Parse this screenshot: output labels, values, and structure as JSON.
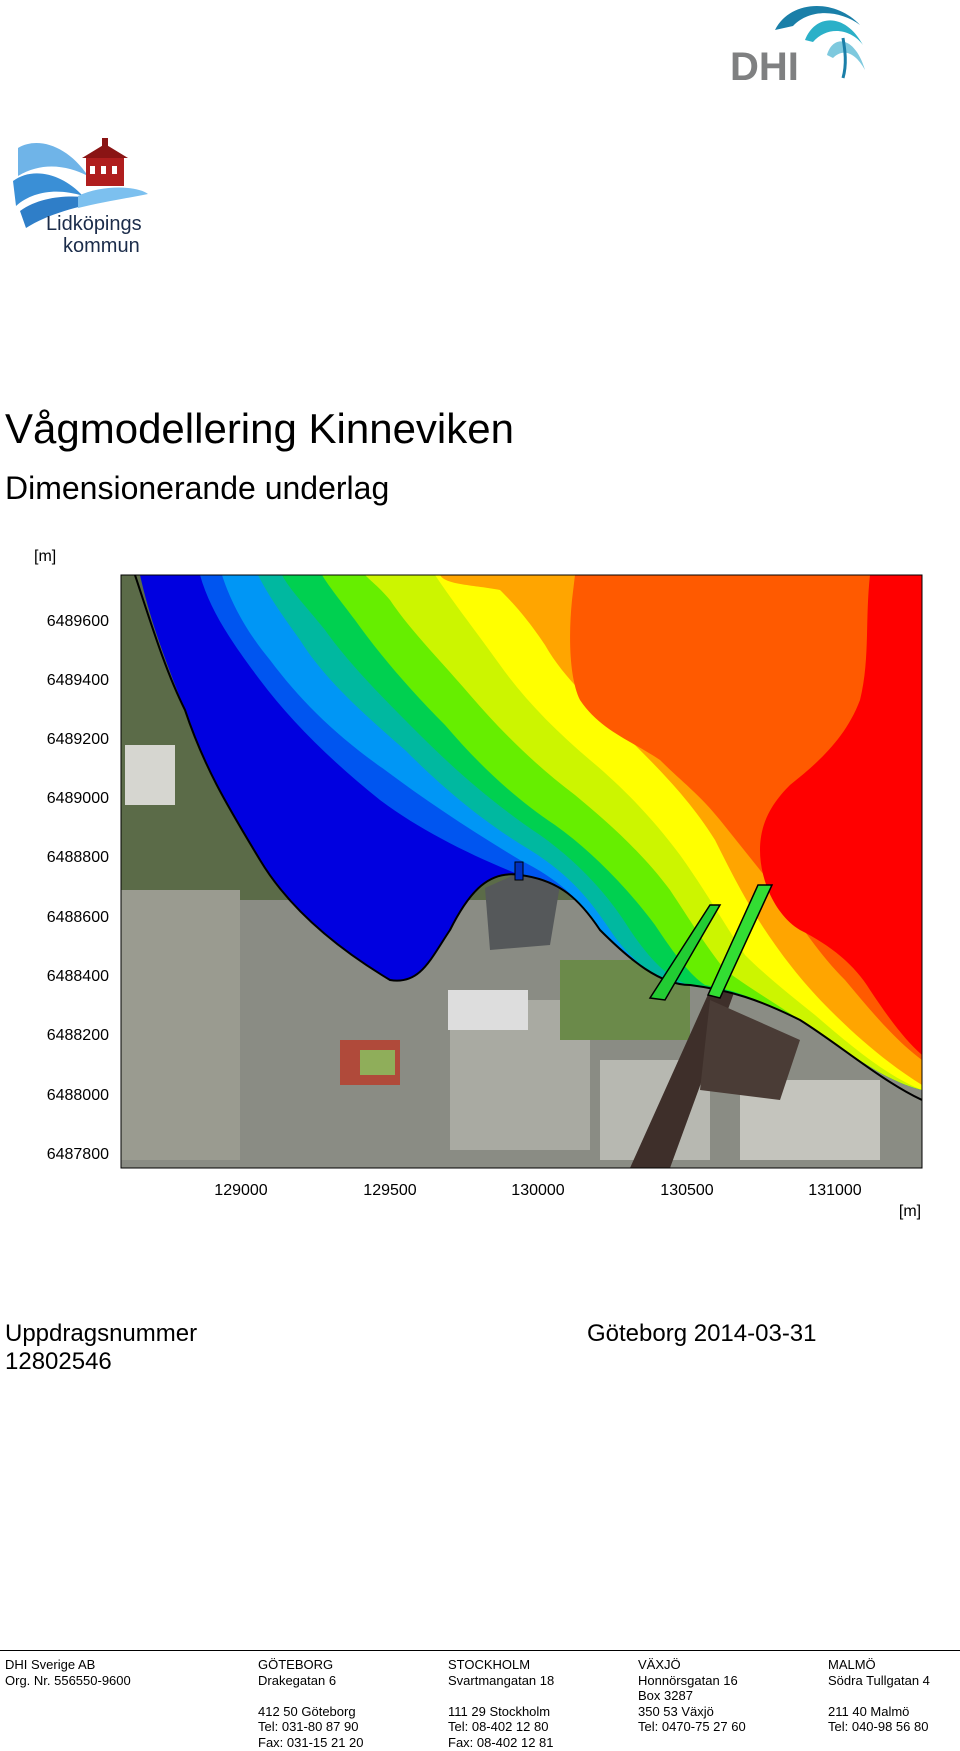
{
  "title": "Vågmodellering Kinneviken",
  "subtitle": "Dimensionerande underlag",
  "logos": {
    "dhi_text": "DHI",
    "municipality_line1": "Lidköpings",
    "municipality_line2": "kommun"
  },
  "map": {
    "y_unit": "[m]",
    "x_unit": "[m]",
    "y_ticks": [
      "6489600",
      "6489400",
      "6489200",
      "6489000",
      "6488800",
      "6488600",
      "6488400",
      "6488200",
      "6488000",
      "6487800"
    ],
    "x_ticks": [
      "129000",
      "129500",
      "130000",
      "130500",
      "131000"
    ]
  },
  "assignment_label": "Uppdragsnummer",
  "assignment_number": "12802546",
  "place_date": "Göteborg 2014-03-31",
  "footer": [
    {
      "lines": [
        "DHI Sverige AB",
        "Org. Nr. 556550-9600"
      ]
    },
    {
      "lines": [
        "GÖTEBORG",
        "Drakegatan 6",
        "",
        "412 50 Göteborg",
        "Tel: 031-80 87 90",
        "Fax: 031-15 21 20"
      ]
    },
    {
      "lines": [
        "STOCKHOLM",
        "Svartmangatan 18",
        "",
        "111 29 Stockholm",
        "Tel: 08-402 12 80",
        "Fax: 08-402 12 81"
      ]
    },
    {
      "lines": [
        "VÄXJÖ",
        "Honnörsgatan 16",
        "Box 3287",
        "350 53 Växjö",
        "Tel: 0470-75 27 60"
      ]
    },
    {
      "lines": [
        "MALMÖ",
        "Södra Tullgatan 4",
        "",
        "211 40 Malmö",
        "Tel: 040-98 56 80"
      ]
    }
  ]
}
